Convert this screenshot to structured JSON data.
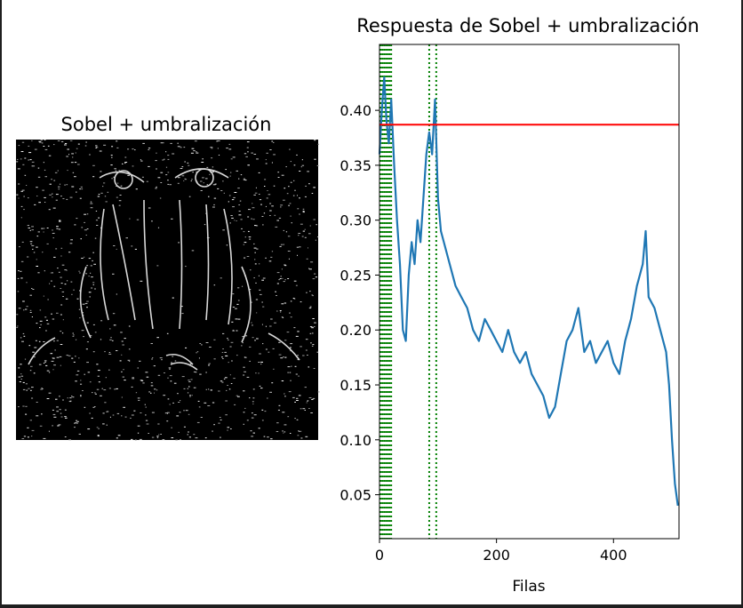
{
  "left_panel": {
    "title": "Sobel + umbralización"
  },
  "chart_data": {
    "type": "line",
    "title": "Respuesta de Sobel + umbralización",
    "xlabel": "Filas",
    "ylabel": "",
    "xlim": [
      0,
      512
    ],
    "ylim": [
      0.01,
      0.46
    ],
    "xticks": [
      0,
      200,
      400
    ],
    "yticks": [
      0.05,
      0.1,
      0.15,
      0.2,
      0.25,
      0.3,
      0.35,
      0.4
    ],
    "grid": false,
    "line_color": "#1f77b4",
    "threshold": {
      "y": 0.387,
      "color": "#ff0000"
    },
    "vlines": {
      "x": [
        2,
        5,
        8,
        11,
        14,
        17,
        20,
        85,
        97
      ],
      "color": "#008000",
      "style": "dotted"
    },
    "series": [
      {
        "x": [
          0,
          4,
          8,
          12,
          16,
          20,
          25,
          30,
          35,
          40,
          45,
          50,
          55,
          60,
          65,
          70,
          75,
          80,
          85,
          90,
          95,
          100,
          105,
          110,
          120,
          130,
          140,
          150,
          160,
          170,
          180,
          190,
          200,
          210,
          220,
          230,
          240,
          250,
          260,
          270,
          280,
          290,
          300,
          310,
          320,
          330,
          340,
          350,
          360,
          370,
          380,
          390,
          400,
          410,
          420,
          430,
          440,
          450,
          455,
          460,
          470,
          480,
          490,
          495,
          500,
          505,
          510
        ],
        "y": [
          0.36,
          0.4,
          0.43,
          0.39,
          0.37,
          0.41,
          0.35,
          0.3,
          0.26,
          0.2,
          0.19,
          0.25,
          0.28,
          0.26,
          0.3,
          0.28,
          0.32,
          0.36,
          0.38,
          0.36,
          0.41,
          0.32,
          0.29,
          0.28,
          0.26,
          0.24,
          0.23,
          0.22,
          0.2,
          0.19,
          0.21,
          0.2,
          0.19,
          0.18,
          0.2,
          0.18,
          0.17,
          0.18,
          0.16,
          0.15,
          0.14,
          0.12,
          0.13,
          0.16,
          0.19,
          0.2,
          0.22,
          0.18,
          0.19,
          0.17,
          0.18,
          0.19,
          0.17,
          0.16,
          0.19,
          0.21,
          0.24,
          0.26,
          0.29,
          0.23,
          0.22,
          0.2,
          0.18,
          0.15,
          0.1,
          0.06,
          0.04
        ]
      }
    ]
  }
}
